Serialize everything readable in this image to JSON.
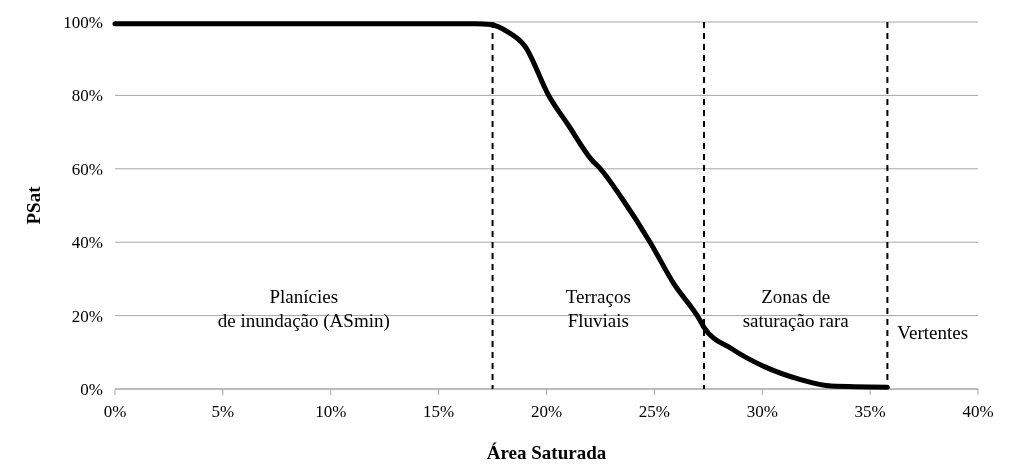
{
  "chart_data": {
    "type": "line",
    "xlabel": "Área Saturada",
    "ylabel": "PSat",
    "x": [
      0,
      5,
      10,
      15,
      16.7,
      17.4,
      18.2,
      19.0,
      20.1,
      21.0,
      22.1,
      22.5,
      23.5,
      24.8,
      25.9,
      27.1,
      27.3,
      28.6,
      30.1,
      31.7,
      33.2,
      35.8
    ],
    "series": [
      {
        "color": "#000000",
        "values": [
          99.5,
          99.5,
          99.5,
          99.5,
          99.5,
          99.3,
          97.3,
          93.4,
          80,
          72,
          62.4,
          60,
          51.9,
          40,
          28.7,
          18.9,
          16.8,
          10.9,
          6.1,
          2.7,
          0.8,
          0.5
        ]
      }
    ],
    "xlim": [
      0,
      40
    ],
    "xticks": [
      {
        "value": 0,
        "label": "0%"
      },
      {
        "value": 5,
        "label": "5%"
      },
      {
        "value": 10,
        "label": "10%"
      },
      {
        "value": 15,
        "label": "15%"
      },
      {
        "value": 20,
        "label": "20%"
      },
      {
        "value": 25,
        "label": "25%"
      },
      {
        "value": 30,
        "label": "30%"
      },
      {
        "value": 35,
        "label": "35%"
      },
      {
        "value": 40,
        "label": "40%"
      }
    ],
    "ylim": [
      0,
      100
    ],
    "yticks": [
      {
        "value": 0,
        "label": "0%"
      },
      {
        "value": 20,
        "label": "20%"
      },
      {
        "value": 40,
        "label": "40%"
      },
      {
        "value": 60,
        "label": "60%"
      },
      {
        "value": 80,
        "label": "80%"
      },
      {
        "value": 100,
        "label": "100%"
      }
    ],
    "grid": "y",
    "marker": "none",
    "line_style": "solid",
    "ref_lines": [
      {
        "axis": "x",
        "value": 17.5,
        "color": "#000000",
        "line_style": "dashed"
      },
      {
        "axis": "x",
        "value": 27.3,
        "color": "#000000",
        "line_style": "dashed"
      },
      {
        "axis": "x",
        "value": 35.8,
        "color": "#000000",
        "line_style": "dashed"
      }
    ],
    "annotations": [
      "Planícies\nde inundação (ASmin)",
      "Terraços\nFluviais",
      "Zonas de\nsaturação rara",
      "Vertentes"
    ]
  }
}
